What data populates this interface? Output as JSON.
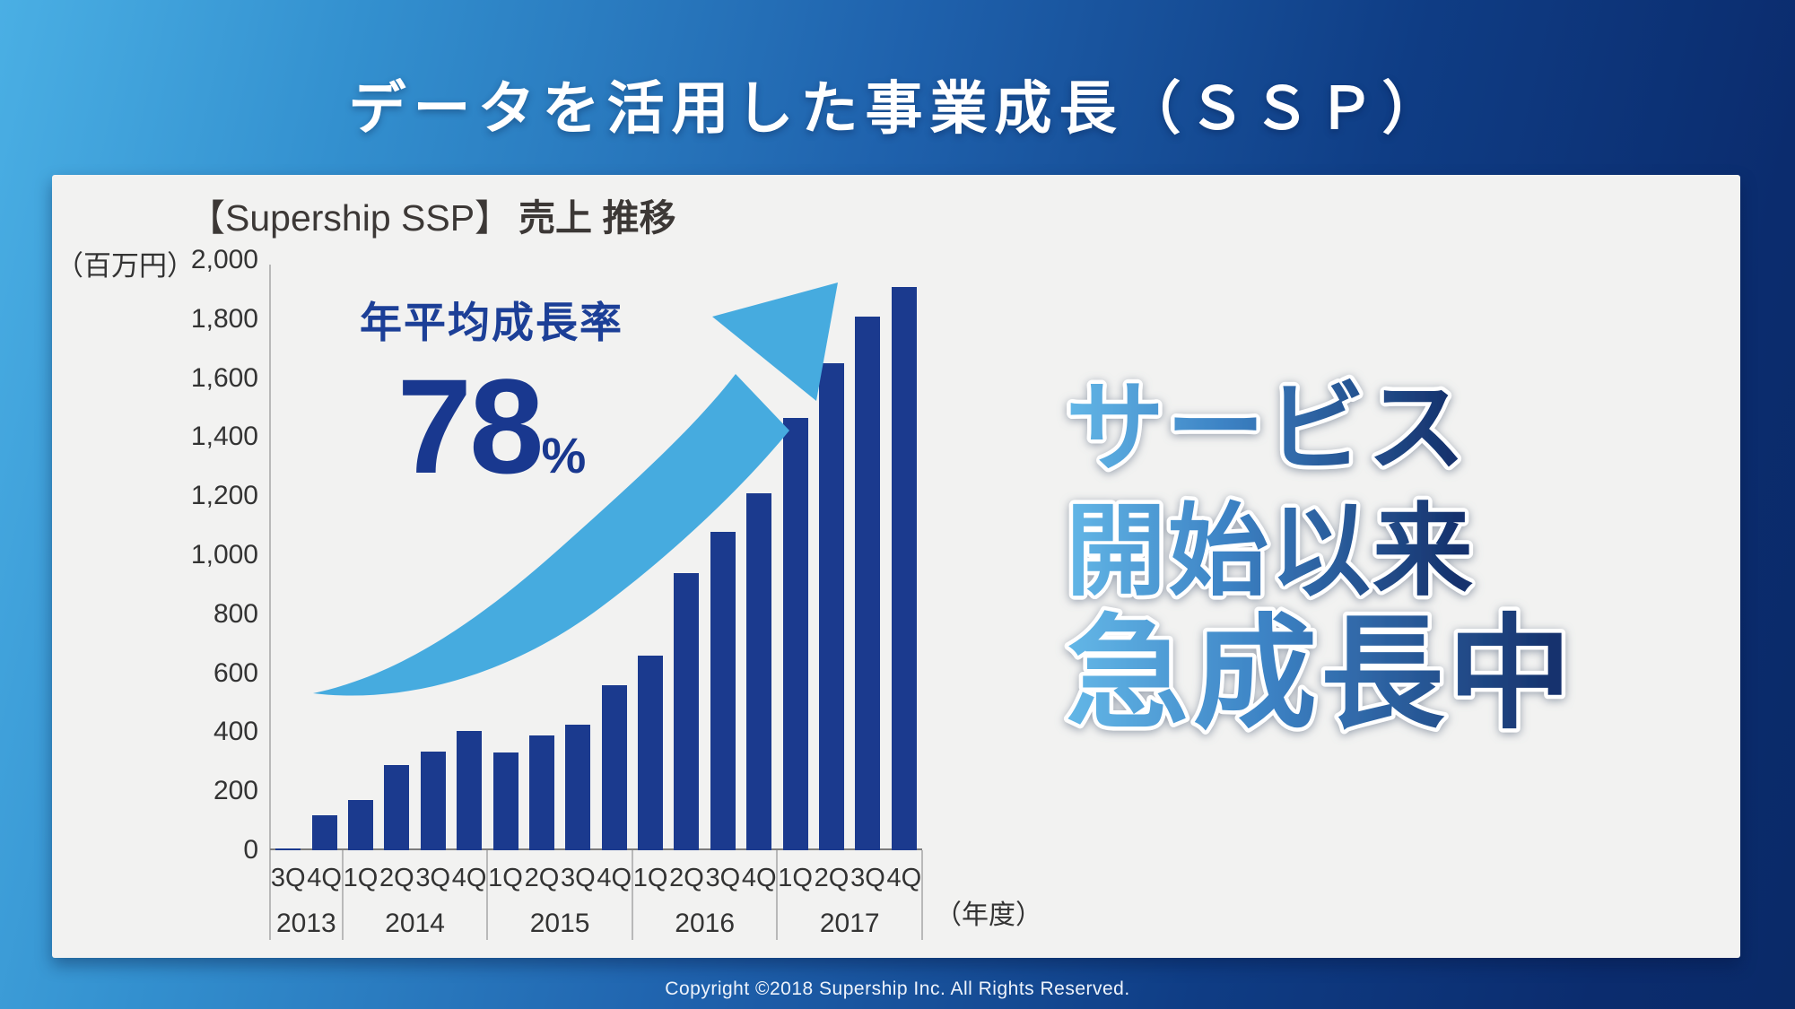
{
  "slide": {
    "title": "データを活用した事業成長（ＳＳＰ）",
    "footer": "Copyright ©2018  Supership Inc. All Rights Reserved."
  },
  "panel": {
    "chart_title": {
      "prefix": "【Supership SSP】",
      "suffix": "売上 推移"
    },
    "headline": {
      "lines": [
        "サービス",
        "開始以来",
        "急成長中"
      ]
    }
  },
  "colors": {
    "bar": "#1b3a8e",
    "arrow": "#46abdf",
    "annotation_text": "#1c3f97",
    "background_gradient": [
      "#4aafe4",
      "#0a2a68"
    ],
    "headline_gradient": [
      "#63b7e7",
      "#3c82c4",
      "#16336e"
    ]
  },
  "chart_data": {
    "type": "bar",
    "title": "【Supership SSP】売上 推移",
    "ylabel": "（百万円）",
    "xlabel": "（年度）",
    "ylim": [
      0,
      2000
    ],
    "ytick_step": 200,
    "grid": false,
    "annotation": {
      "label": "年平均成長率",
      "value": "78",
      "unit": "%"
    },
    "groups": [
      {
        "year": "2013",
        "quarters": [
          "3Q",
          "4Q"
        ],
        "values": [
          5,
          120
        ]
      },
      {
        "year": "2014",
        "quarters": [
          "1Q",
          "2Q",
          "3Q",
          "4Q"
        ],
        "values": [
          170,
          290,
          335,
          405
        ]
      },
      {
        "year": "2015",
        "quarters": [
          "1Q",
          "2Q",
          "3Q",
          "4Q"
        ],
        "values": [
          330,
          390,
          425,
          560
        ]
      },
      {
        "year": "2016",
        "quarters": [
          "1Q",
          "2Q",
          "3Q",
          "4Q"
        ],
        "values": [
          660,
          940,
          1080,
          1210
        ]
      },
      {
        "year": "2017",
        "quarters": [
          "1Q",
          "2Q",
          "3Q",
          "4Q"
        ],
        "values": [
          1465,
          1650,
          1810,
          1910
        ]
      }
    ]
  }
}
